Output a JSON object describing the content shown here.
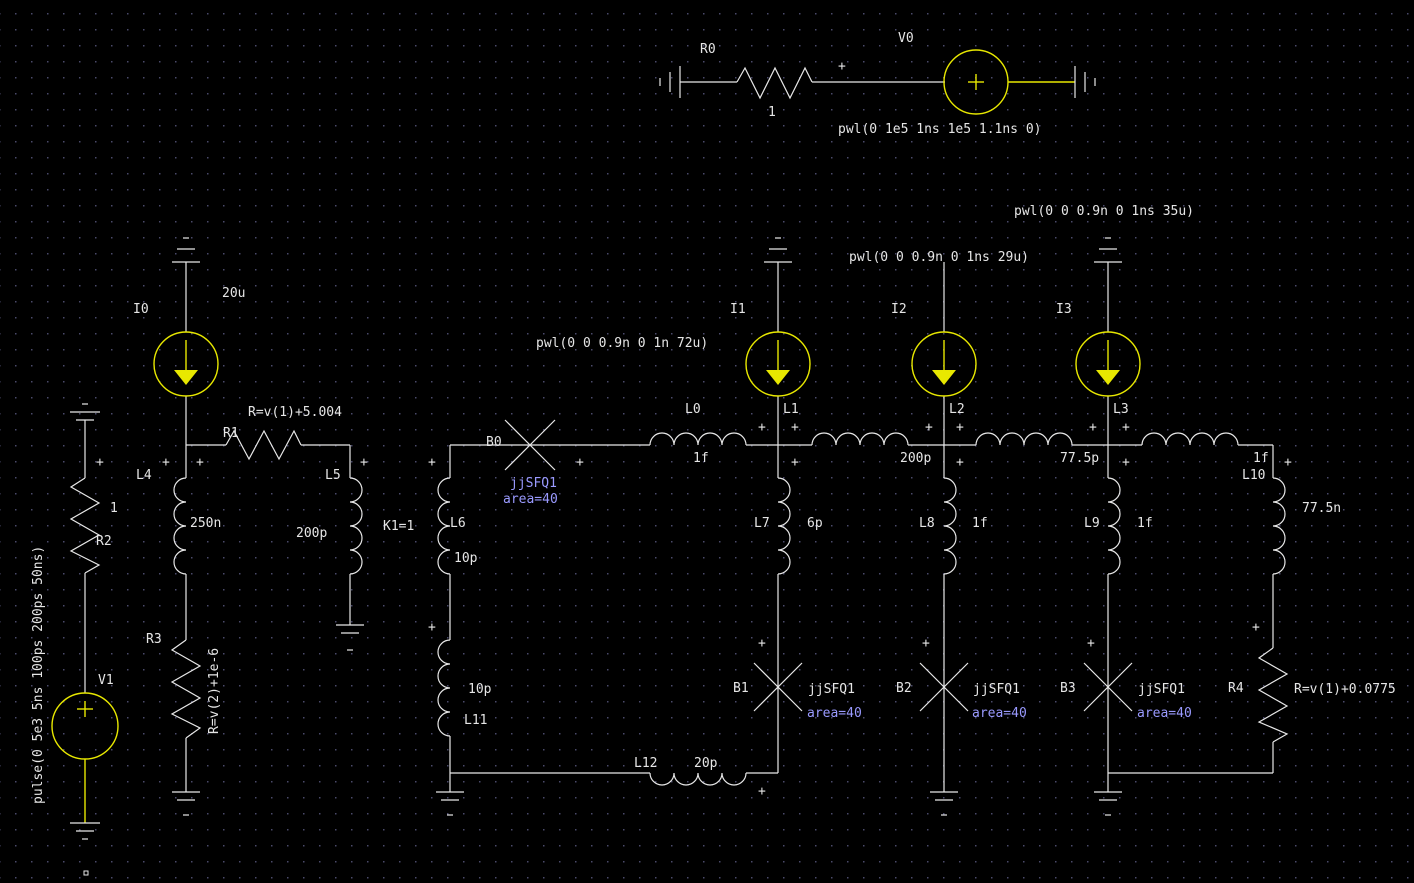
{
  "colors": {
    "background": "#000000",
    "wire": "#e8e8e8",
    "source": "#e8e800",
    "attribute": "#9a9aff",
    "grid": "#4a4a6a"
  },
  "components": {
    "V0": {
      "name": "V0",
      "value": "pwl(0 1e5 1ns 1e5 1.1ns 0)"
    },
    "R0": {
      "name": "R0",
      "value": "1"
    },
    "V1": {
      "name": "V1",
      "value": "pulse(0 5e3 5ns 100ps 200ps 50ns)"
    },
    "R2": {
      "name": "R2",
      "value": "1"
    },
    "R3": {
      "name": "R3",
      "value": "R=v(2)+1e-6"
    },
    "I0": {
      "name": "I0",
      "value": "20u"
    },
    "R1": {
      "name": "R1",
      "value": "R=v(1)+5.004"
    },
    "L4": {
      "name": "L4",
      "value": "250n"
    },
    "L5": {
      "name": "L5",
      "value": "200p"
    },
    "K1": {
      "value": "K1=1"
    },
    "B0": {
      "name": "B0",
      "model": "jjSFQ1",
      "area": "area=40"
    },
    "L6": {
      "name": "L6",
      "value": "10p"
    },
    "L11": {
      "name": "L11",
      "value": "10p"
    },
    "L12": {
      "name": "L12",
      "value": "20p"
    },
    "L0": {
      "name": "L0",
      "value": "1f"
    },
    "I1": {
      "name": "I1",
      "value": "pwl(0 0 0.9n 0 1n 72u)"
    },
    "L1": {
      "name": "L1",
      "value": "200p"
    },
    "L7": {
      "name": "L7",
      "value": "6p"
    },
    "B1": {
      "name": "B1",
      "model": "jjSFQ1",
      "area": "area=40"
    },
    "I2": {
      "name": "I2",
      "value": "pwl(0 0 0.9n 0 1ns 29u)"
    },
    "L2": {
      "name": "L2",
      "value": "77.5p"
    },
    "L8": {
      "name": "L8",
      "value": "1f"
    },
    "B2": {
      "name": "B2",
      "model": "jjSFQ1",
      "area": "area=40"
    },
    "I3": {
      "name": "I3",
      "value": "pwl(0 0 0.9n 0 1ns 35u)"
    },
    "L3": {
      "name": "L3",
      "value": "1f"
    },
    "L9": {
      "name": "L9",
      "value": "1f"
    },
    "B3": {
      "name": "B3",
      "model": "jjSFQ1",
      "area": "area=40"
    },
    "L10": {
      "name": "L10",
      "value": "77.5n"
    },
    "R4": {
      "name": "R4",
      "value": "R=v(1)+0.0775"
    }
  },
  "pin_marker": "+"
}
